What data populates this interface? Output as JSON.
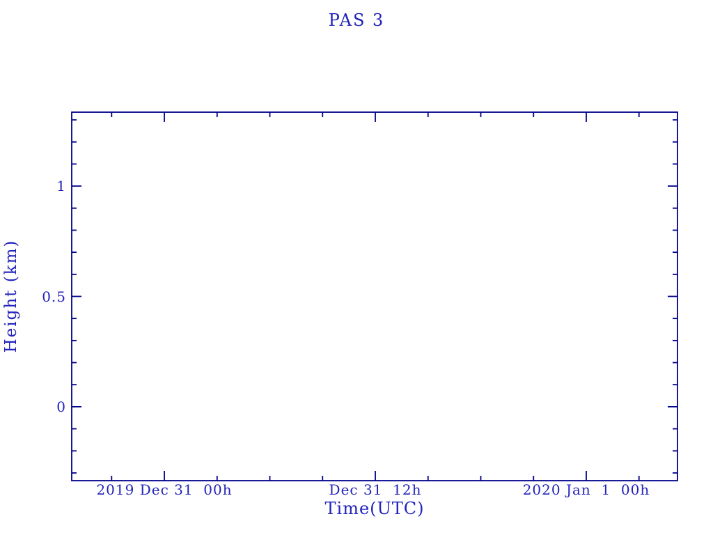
{
  "page": {
    "background": "#ffffff"
  },
  "chart_data": {
    "type": "line",
    "title": "PAS 3",
    "xlabel": "Time(UTC)",
    "ylabel": "Height (km)",
    "series": [],
    "grid": false,
    "legend": null,
    "colors": {
      "frame": "#00008b",
      "text": "#2222bb",
      "background": "#ffffff"
    },
    "axes": {
      "x": {
        "lim": [
          -5.27,
          29.19
        ],
        "major_ticks": [
          {
            "value": 0,
            "label": "2019 Dec 31  00h"
          },
          {
            "value": 12,
            "label": "Dec 31  12h"
          },
          {
            "value": 24,
            "label": "2020 Jan  1  00h"
          }
        ],
        "minor_ticks": [
          -3,
          3,
          6,
          9,
          15,
          18,
          21,
          27
        ]
      },
      "y": {
        "lim": [
          -0.335,
          1.335
        ],
        "major_ticks": [
          {
            "value": 0,
            "label": "0"
          },
          {
            "value": 0.5,
            "label": "0.5"
          },
          {
            "value": 1,
            "label": "1"
          }
        ],
        "minor_ticks": [
          -0.3,
          -0.2,
          -0.1,
          0.1,
          0.2,
          0.3,
          0.4,
          0.6,
          0.7,
          0.8,
          0.9,
          1.1,
          1.2,
          1.3
        ]
      }
    }
  }
}
